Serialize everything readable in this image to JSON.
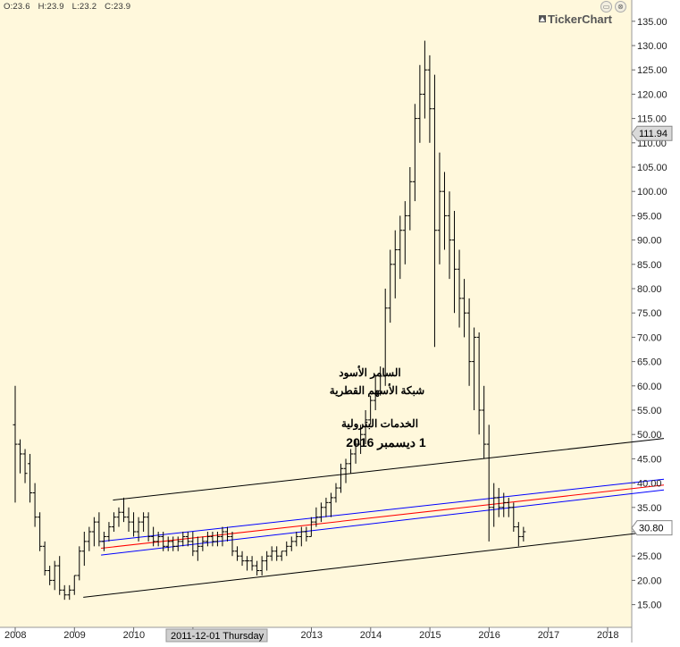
{
  "header": {
    "open": "O:23.6",
    "high": "H:23.9",
    "low": "L:23.2",
    "close": "C:23.9"
  },
  "window_buttons": {
    "minimize": "▭",
    "close": "⊗"
  },
  "brand": {
    "name": "TickerChart"
  },
  "crosshair_label": "2011-12-01 Thursday",
  "annotation": {
    "line1": "السامر الأسود",
    "line2": "شبكة الأسهم القطرية",
    "line3": "الخدمات البترولية",
    "line4": "1 ديسمبر 2016"
  },
  "colors": {
    "background": "#fff8dc",
    "bars": "#000000",
    "middle_line": "#ff0000",
    "band_lines": "#0000ff",
    "channel_lines": "#000000"
  },
  "chart_data": {
    "type": "ohlc",
    "frequency": "monthly",
    "ylim": [
      11,
      137
    ],
    "y_ticks": [
      "135.00",
      "130.00",
      "125.00",
      "120.00",
      "115.00",
      "110.00",
      "105.00",
      "100.00",
      "95.00",
      "90.00",
      "85.00",
      "80.00",
      "75.00",
      "70.00",
      "65.00",
      "60.00",
      "55.00",
      "50.00",
      "45.00",
      "40.00",
      "35.00",
      "30.00",
      "25.00",
      "20.00",
      "15.00"
    ],
    "x_ticks": [
      {
        "label": "2008",
        "t": 2007.95
      },
      {
        "label": "2009",
        "t": 2008.95
      },
      {
        "label": "2010",
        "t": 2009.95
      },
      {
        "label": "2011",
        "t": 2010.95
      },
      {
        "label": "2013",
        "t": 2012.95
      },
      {
        "label": "2014",
        "t": 2013.95
      },
      {
        "label": "2015",
        "t": 2014.95
      },
      {
        "label": "2016",
        "t": 2015.95
      },
      {
        "label": "2017",
        "t": 2016.95
      },
      {
        "label": "2018",
        "t": 2017.95
      }
    ],
    "price_markers": [
      {
        "label": "111.94",
        "value": 111.94,
        "style": "gray"
      },
      {
        "label": "30.80",
        "value": 30.8,
        "style": "white"
      }
    ],
    "trend_lines": [
      {
        "name": "upper channel",
        "color": "black",
        "start": [
          2009.6,
          36.5
        ],
        "end": [
          2018.9,
          49.2
        ]
      },
      {
        "name": "lower channel",
        "color": "black",
        "start": [
          2009.1,
          16.5
        ],
        "end": [
          2018.9,
          30.3
        ]
      },
      {
        "name": "upper band",
        "color": "blue",
        "start": [
          2009.4,
          28.0
        ],
        "end": [
          2018.9,
          40.8
        ]
      },
      {
        "name": "middle",
        "color": "red",
        "start": [
          2009.4,
          26.6
        ],
        "end": [
          2018.9,
          39.6
        ]
      },
      {
        "name": "lower band",
        "color": "blue",
        "start": [
          2009.4,
          25.2
        ],
        "end": [
          2018.9,
          38.6
        ]
      }
    ],
    "bars_start": 2007.95,
    "bar_step": 0.0833,
    "bars": [
      [
        52,
        60,
        36,
        48
      ],
      [
        48,
        49,
        42,
        46
      ],
      [
        46,
        47,
        40,
        42
      ],
      [
        44,
        46,
        36,
        38
      ],
      [
        38,
        40,
        31,
        33
      ],
      [
        33,
        34,
        26,
        27
      ],
      [
        27,
        28,
        21,
        22
      ],
      [
        22,
        23,
        19,
        20
      ],
      [
        20,
        24,
        18,
        23
      ],
      [
        23,
        25,
        17,
        18
      ],
      [
        18,
        19,
        16,
        17
      ],
      [
        17,
        19,
        16,
        18
      ],
      [
        18,
        21,
        17,
        21
      ],
      [
        21,
        27,
        20,
        26
      ],
      [
        26,
        30,
        23,
        28
      ],
      [
        28,
        31,
        26,
        30
      ],
      [
        30,
        33,
        27,
        32
      ],
      [
        32,
        34,
        27,
        28
      ],
      [
        28,
        30,
        26,
        29
      ],
      [
        29,
        32,
        28,
        31
      ],
      [
        31,
        34,
        30,
        33
      ],
      [
        33,
        35,
        31,
        34
      ],
      [
        34,
        37,
        32,
        33
      ],
      [
        33,
        35,
        30,
        32
      ],
      [
        32,
        34,
        29,
        30
      ],
      [
        30,
        33,
        28,
        32
      ],
      [
        32,
        34,
        30,
        33
      ],
      [
        33,
        34,
        28,
        29
      ],
      [
        29,
        31,
        27,
        28
      ],
      [
        28,
        30,
        27,
        29
      ],
      [
        29,
        30,
        26,
        27
      ],
      [
        27,
        29,
        26,
        28
      ],
      [
        28,
        29,
        26,
        27
      ],
      [
        27,
        29,
        26,
        28
      ],
      [
        28,
        30,
        27,
        29
      ],
      [
        29,
        30,
        27,
        28
      ],
      [
        28,
        30,
        25,
        26
      ],
      [
        26,
        29,
        24,
        27
      ],
      [
        27,
        29,
        26,
        28
      ],
      [
        28,
        30,
        27,
        29
      ],
      [
        29,
        30,
        27,
        28
      ],
      [
        28,
        30,
        27,
        29
      ],
      [
        29,
        31,
        27,
        30
      ],
      [
        30,
        31,
        28,
        29
      ],
      [
        29,
        30,
        25,
        26
      ],
      [
        26,
        27,
        24,
        25
      ],
      [
        25,
        26,
        23,
        24
      ],
      [
        24,
        25,
        22,
        24
      ],
      [
        24,
        25,
        22,
        23
      ],
      [
        23,
        24,
        21,
        22
      ],
      [
        22,
        25,
        21,
        24
      ],
      [
        24,
        26,
        22,
        25
      ],
      [
        25,
        27,
        24,
        26
      ],
      [
        26,
        27,
        24,
        25
      ],
      [
        25,
        26,
        24,
        26
      ],
      [
        26,
        28,
        25,
        27
      ],
      [
        27,
        29,
        26,
        28
      ],
      [
        28,
        30,
        27,
        29
      ],
      [
        29,
        31,
        27,
        30
      ],
      [
        30,
        31,
        28,
        29
      ],
      [
        29,
        33,
        29,
        32
      ],
      [
        32,
        35,
        31,
        33
      ],
      [
        33,
        36,
        32,
        35
      ],
      [
        35,
        37,
        33,
        36
      ],
      [
        36,
        38,
        33,
        37
      ],
      [
        37,
        40,
        36,
        39
      ],
      [
        39,
        44,
        38,
        43
      ],
      [
        43,
        45,
        40,
        44
      ],
      [
        44,
        47,
        42,
        46
      ],
      [
        46,
        49,
        44,
        48
      ],
      [
        48,
        52,
        46,
        50
      ],
      [
        50,
        55,
        48,
        53
      ],
      [
        53,
        58,
        52,
        57
      ],
      [
        57,
        62,
        55,
        59
      ],
      [
        59,
        64,
        58,
        62
      ],
      [
        62,
        80,
        60,
        76
      ],
      [
        76,
        88,
        73,
        85
      ],
      [
        85,
        92,
        78,
        88
      ],
      [
        88,
        95,
        82,
        92
      ],
      [
        92,
        98,
        85,
        95
      ],
      [
        95,
        105,
        92,
        102
      ],
      [
        102,
        118,
        98,
        115
      ],
      [
        115,
        126,
        110,
        120
      ],
      [
        120,
        131,
        115,
        125
      ],
      [
        125,
        128,
        110,
        117
      ],
      [
        117,
        124,
        68,
        92
      ],
      [
        92,
        108,
        85,
        100
      ],
      [
        100,
        104,
        88,
        95
      ],
      [
        95,
        100,
        82,
        90
      ],
      [
        90,
        96,
        75,
        84
      ],
      [
        84,
        88,
        72,
        78
      ],
      [
        78,
        82,
        70,
        75
      ],
      [
        75,
        78,
        60,
        65
      ],
      [
        65,
        72,
        55,
        70
      ],
      [
        70,
        71,
        50,
        55
      ],
      [
        55,
        60,
        45,
        48
      ],
      [
        48,
        52,
        28,
        35
      ],
      [
        35,
        40,
        31,
        37
      ],
      [
        37,
        39,
        33,
        35
      ],
      [
        35,
        38,
        33,
        36
      ],
      [
        36,
        37,
        33,
        35
      ],
      [
        35,
        36,
        30,
        31
      ],
      [
        31,
        32,
        27,
        29
      ],
      [
        29,
        31,
        28,
        30
      ]
    ]
  }
}
